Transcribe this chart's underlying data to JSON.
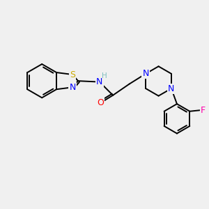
{
  "bg_color": "#f0f0f0",
  "atom_colors": {
    "C": "#000000",
    "N": "#0000ff",
    "O": "#ff0000",
    "S": "#ccaa00",
    "F": "#ff00aa",
    "H": "#7fbfbf"
  },
  "bond_color": "#000000",
  "bond_width": 1.4,
  "font_size": 9
}
